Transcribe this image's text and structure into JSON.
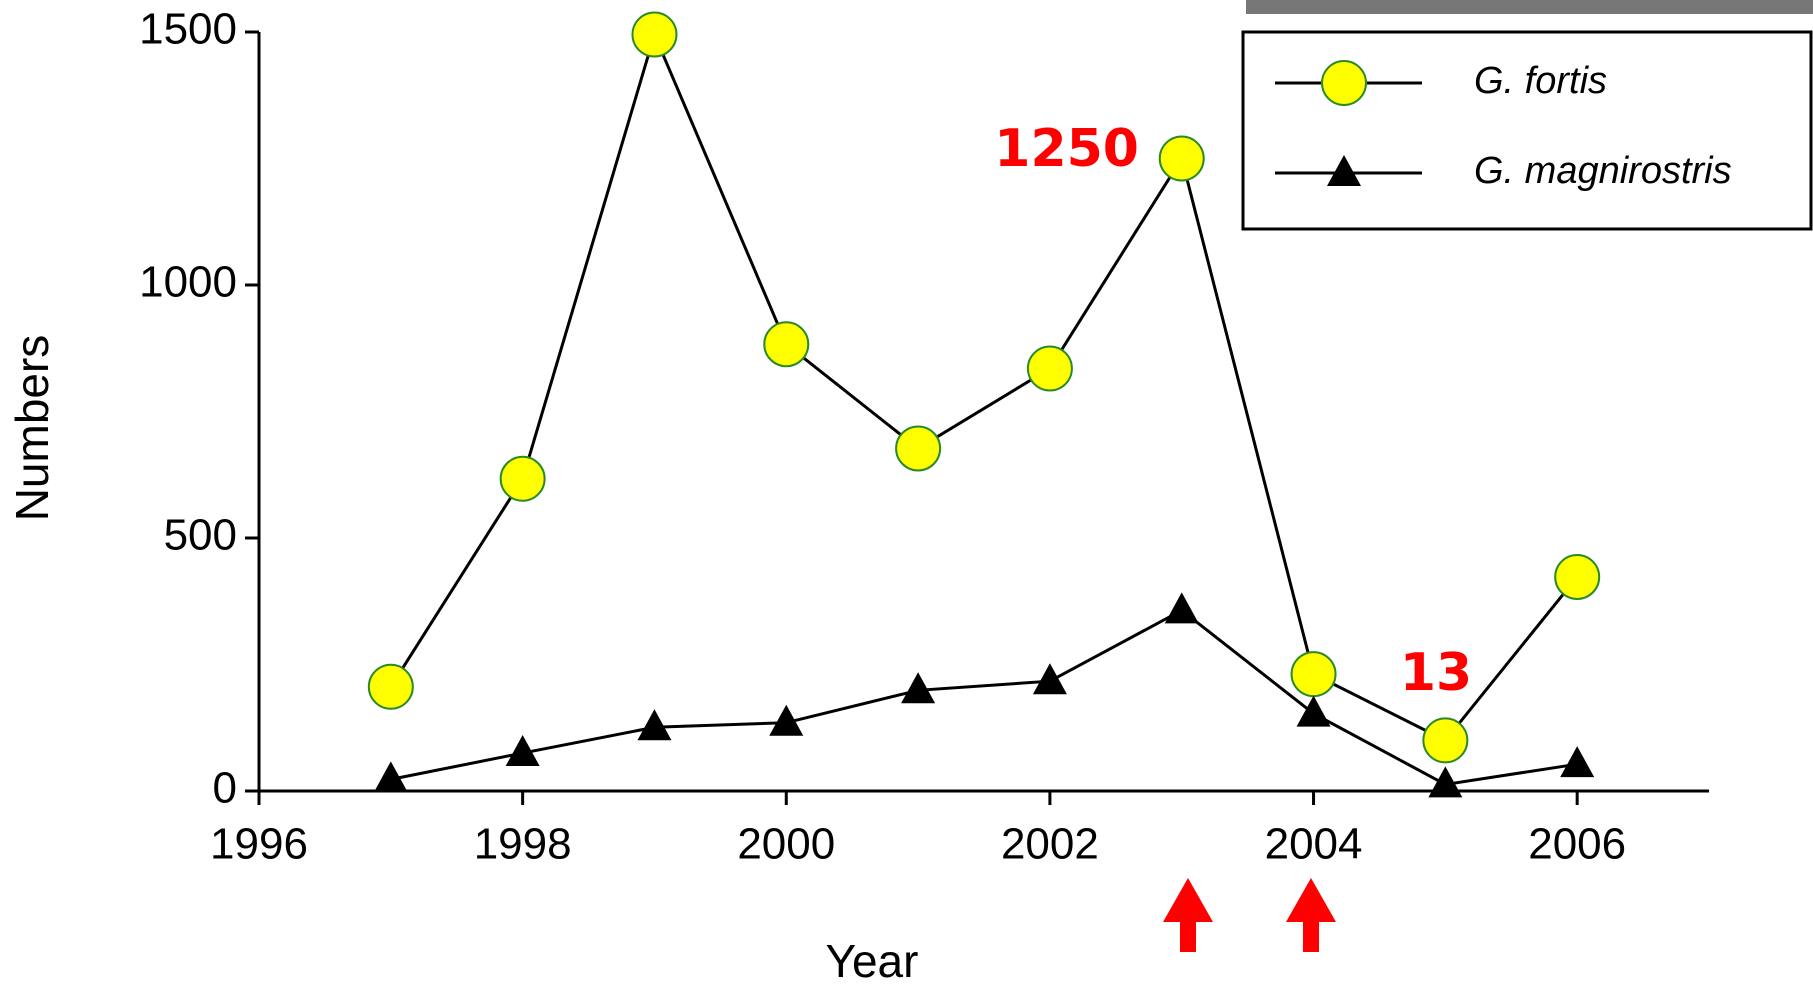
{
  "chart_data": {
    "type": "line",
    "x": [
      1997,
      1998,
      1999,
      2000,
      2001,
      2002,
      2003,
      2004,
      2005,
      2006
    ],
    "series": [
      {
        "name": "G. fortis",
        "color": "#ffff00",
        "marker": "circle",
        "values": [
          206,
          617,
          1495,
          883,
          677,
          835,
          1250,
          231,
          100,
          423
        ]
      },
      {
        "name": "G. magnirostris",
        "color": "#000000",
        "marker": "triangle",
        "values": [
          23,
          75,
          126,
          135,
          199,
          217,
          357,
          153,
          13,
          53
        ]
      }
    ],
    "xlabel": "Year",
    "ylabel": "Numbers",
    "xlim": [
      1996,
      2007
    ],
    "xticks": [
      1996,
      1998,
      2000,
      2002,
      2004,
      2006
    ],
    "ylim": [
      0,
      1500
    ],
    "yticks": [
      0,
      500,
      1000,
      1500
    ],
    "grid": false,
    "legend": "upper right",
    "annotations": [
      "1250",
      "13"
    ]
  }
}
